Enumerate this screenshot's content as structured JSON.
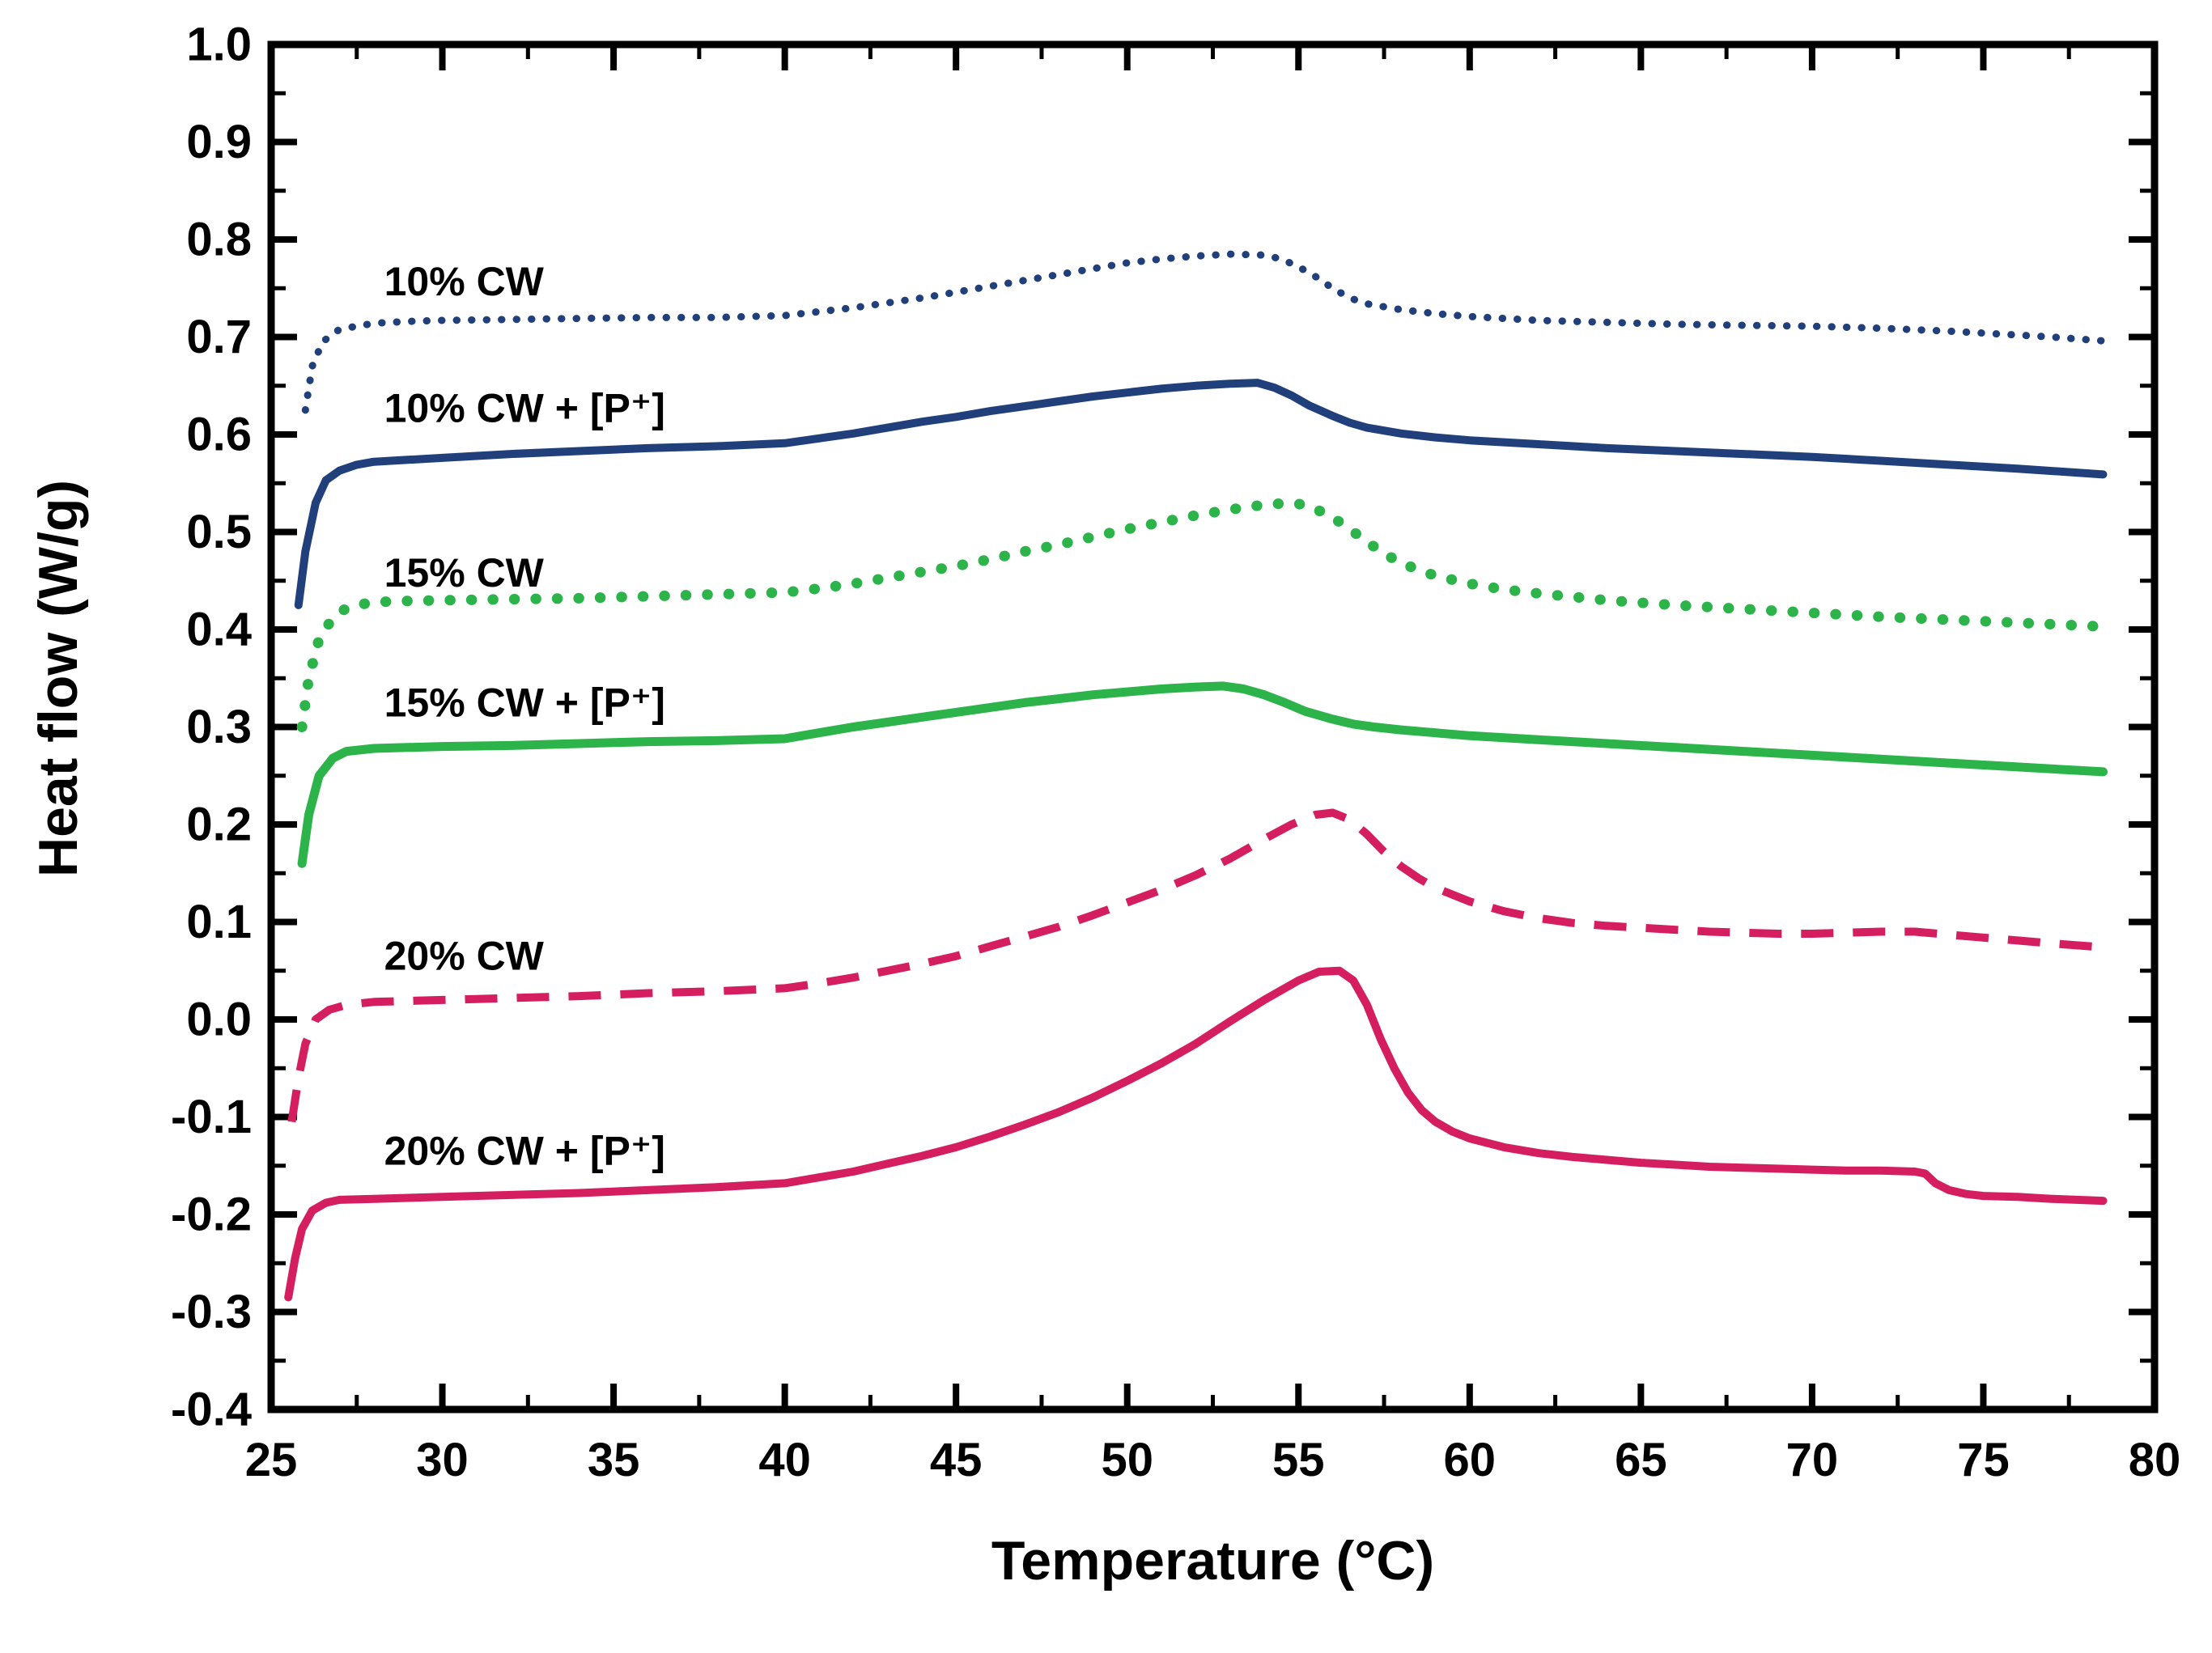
{
  "figure": {
    "background": "#ffffff"
  },
  "chart_data": {
    "type": "line",
    "title": "",
    "xlabel": "Temperature (°C)",
    "ylabel": "Heat flow (W/g)",
    "xlim": [
      25,
      80
    ],
    "ylim": [
      -0.4,
      1.0
    ],
    "x_major_tick": 5,
    "x_minor_tick": 2.5,
    "y_major_tick": 0.1,
    "y_minor_tick": 0.05,
    "grid": false,
    "axis_color": "#000000",
    "legend_position": "inline-labels",
    "series": [
      {
        "name": "10% CW",
        "label": "10% CW",
        "color": "#203f7b",
        "line_style": "dot",
        "line_width": 9,
        "label_pos": {
          "x": 28.3,
          "y": 0.757
        },
        "points": [
          [
            26,
            0.625
          ],
          [
            26.2,
            0.67
          ],
          [
            26.5,
            0.695
          ],
          [
            27,
            0.708
          ],
          [
            28,
            0.714
          ],
          [
            29,
            0.716
          ],
          [
            30,
            0.717
          ],
          [
            32,
            0.718
          ],
          [
            34,
            0.719
          ],
          [
            36,
            0.72
          ],
          [
            38,
            0.72
          ],
          [
            40,
            0.722
          ],
          [
            41,
            0.726
          ],
          [
            42,
            0.73
          ],
          [
            43,
            0.735
          ],
          [
            44,
            0.74
          ],
          [
            45,
            0.746
          ],
          [
            46,
            0.752
          ],
          [
            47,
            0.758
          ],
          [
            48,
            0.764
          ],
          [
            49,
            0.77
          ],
          [
            50,
            0.776
          ],
          [
            51,
            0.78
          ],
          [
            52,
            0.783
          ],
          [
            53,
            0.785
          ],
          [
            54,
            0.784
          ],
          [
            54.5,
            0.78
          ],
          [
            55,
            0.772
          ],
          [
            55.5,
            0.762
          ],
          [
            56,
            0.75
          ],
          [
            56.5,
            0.74
          ],
          [
            57,
            0.734
          ],
          [
            58,
            0.728
          ],
          [
            59,
            0.724
          ],
          [
            60,
            0.721
          ],
          [
            62,
            0.717
          ],
          [
            64,
            0.715
          ],
          [
            66,
            0.713
          ],
          [
            68,
            0.712
          ],
          [
            70,
            0.711
          ],
          [
            72,
            0.709
          ],
          [
            74,
            0.706
          ],
          [
            76,
            0.702
          ],
          [
            77,
            0.7
          ],
          [
            78.5,
            0.696
          ]
        ]
      },
      {
        "name": "10% CW + [P+]",
        "label": "10% CW + [P⁺]",
        "color": "#203f7b",
        "line_style": "solid",
        "line_width": 10,
        "label_pos": {
          "x": 28.3,
          "y": 0.627
        },
        "points": [
          [
            25.8,
            0.425
          ],
          [
            26,
            0.48
          ],
          [
            26.3,
            0.53
          ],
          [
            26.6,
            0.553
          ],
          [
            27,
            0.563
          ],
          [
            27.5,
            0.569
          ],
          [
            28,
            0.572
          ],
          [
            29,
            0.574
          ],
          [
            30,
            0.576
          ],
          [
            32,
            0.58
          ],
          [
            34,
            0.583
          ],
          [
            36,
            0.586
          ],
          [
            38,
            0.588
          ],
          [
            40,
            0.591
          ],
          [
            41,
            0.596
          ],
          [
            42,
            0.601
          ],
          [
            43,
            0.607
          ],
          [
            44,
            0.613
          ],
          [
            45,
            0.618
          ],
          [
            46,
            0.624
          ],
          [
            47,
            0.629
          ],
          [
            48,
            0.634
          ],
          [
            49,
            0.639
          ],
          [
            50,
            0.643
          ],
          [
            51,
            0.647
          ],
          [
            52,
            0.65
          ],
          [
            53,
            0.652
          ],
          [
            53.8,
            0.653
          ],
          [
            54.3,
            0.648
          ],
          [
            54.8,
            0.64
          ],
          [
            55.3,
            0.63
          ],
          [
            56,
            0.619
          ],
          [
            56.5,
            0.612
          ],
          [
            57,
            0.607
          ],
          [
            58,
            0.601
          ],
          [
            59,
            0.597
          ],
          [
            60,
            0.594
          ],
          [
            62,
            0.59
          ],
          [
            64,
            0.586
          ],
          [
            66,
            0.583
          ],
          [
            68,
            0.58
          ],
          [
            70,
            0.577
          ],
          [
            72,
            0.573
          ],
          [
            74,
            0.569
          ],
          [
            76,
            0.565
          ],
          [
            78.5,
            0.559
          ]
        ]
      },
      {
        "name": "15% CW",
        "label": "15% CW",
        "color": "#2cb34a",
        "line_style": "dot",
        "line_width": 13,
        "label_pos": {
          "x": 28.3,
          "y": 0.458
        },
        "points": [
          [
            25.9,
            0.3
          ],
          [
            26.1,
            0.35
          ],
          [
            26.4,
            0.39
          ],
          [
            26.8,
            0.412
          ],
          [
            27.2,
            0.422
          ],
          [
            27.8,
            0.427
          ],
          [
            28.5,
            0.429
          ],
          [
            30,
            0.43
          ],
          [
            32,
            0.431
          ],
          [
            34,
            0.432
          ],
          [
            36,
            0.434
          ],
          [
            38,
            0.436
          ],
          [
            40,
            0.438
          ],
          [
            41,
            0.442
          ],
          [
            42,
            0.447
          ],
          [
            43,
            0.453
          ],
          [
            44,
            0.459
          ],
          [
            45,
            0.465
          ],
          [
            46,
            0.472
          ],
          [
            47,
            0.48
          ],
          [
            48,
            0.487
          ],
          [
            49,
            0.495
          ],
          [
            50,
            0.503
          ],
          [
            51,
            0.51
          ],
          [
            52,
            0.517
          ],
          [
            53,
            0.523
          ],
          [
            54,
            0.528
          ],
          [
            54.8,
            0.53
          ],
          [
            55.3,
            0.527
          ],
          [
            56,
            0.515
          ],
          [
            56.5,
            0.503
          ],
          [
            57,
            0.49
          ],
          [
            57.5,
            0.478
          ],
          [
            58,
            0.468
          ],
          [
            59,
            0.455
          ],
          [
            60,
            0.447
          ],
          [
            61,
            0.441
          ],
          [
            62,
            0.437
          ],
          [
            64,
            0.43
          ],
          [
            66,
            0.425
          ],
          [
            68,
            0.421
          ],
          [
            70,
            0.417
          ],
          [
            72,
            0.413
          ],
          [
            74,
            0.41
          ],
          [
            76,
            0.407
          ],
          [
            78.5,
            0.403
          ]
        ]
      },
      {
        "name": "15% CW + [P+]",
        "label": "15% CW + [P⁺]",
        "color": "#2cb34a",
        "line_style": "solid",
        "line_width": 11,
        "label_pos": {
          "x": 28.3,
          "y": 0.325
        },
        "points": [
          [
            25.9,
            0.16
          ],
          [
            26.1,
            0.21
          ],
          [
            26.4,
            0.25
          ],
          [
            26.8,
            0.268
          ],
          [
            27.2,
            0.275
          ],
          [
            28,
            0.278
          ],
          [
            29,
            0.279
          ],
          [
            30,
            0.28
          ],
          [
            32,
            0.281
          ],
          [
            34,
            0.283
          ],
          [
            36,
            0.285
          ],
          [
            38,
            0.286
          ],
          [
            40,
            0.288
          ],
          [
            40.5,
            0.291
          ],
          [
            41,
            0.294
          ],
          [
            42,
            0.3
          ],
          [
            43,
            0.305
          ],
          [
            44,
            0.31
          ],
          [
            45,
            0.315
          ],
          [
            46,
            0.32
          ],
          [
            47,
            0.325
          ],
          [
            48,
            0.329
          ],
          [
            49,
            0.333
          ],
          [
            50,
            0.336
          ],
          [
            51,
            0.339
          ],
          [
            52,
            0.341
          ],
          [
            52.8,
            0.342
          ],
          [
            53.4,
            0.339
          ],
          [
            54,
            0.333
          ],
          [
            54.6,
            0.325
          ],
          [
            55.2,
            0.316
          ],
          [
            56,
            0.308
          ],
          [
            56.6,
            0.303
          ],
          [
            57.2,
            0.3
          ],
          [
            58,
            0.297
          ],
          [
            59,
            0.294
          ],
          [
            60,
            0.291
          ],
          [
            62,
            0.287
          ],
          [
            64,
            0.283
          ],
          [
            66,
            0.279
          ],
          [
            68,
            0.275
          ],
          [
            70,
            0.271
          ],
          [
            72,
            0.267
          ],
          [
            74,
            0.263
          ],
          [
            76,
            0.259
          ],
          [
            78.5,
            0.254
          ]
        ]
      },
      {
        "name": "20% CW",
        "label": "20% CW",
        "color": "#d41e5f",
        "line_style": "dash",
        "line_width": 10,
        "label_pos": {
          "x": 28.3,
          "y": 0.065
        },
        "points": [
          [
            25.6,
            -0.105
          ],
          [
            25.8,
            -0.06
          ],
          [
            26,
            -0.025
          ],
          [
            26.3,
            0.0
          ],
          [
            26.7,
            0.01
          ],
          [
            27.2,
            0.015
          ],
          [
            28,
            0.018
          ],
          [
            29,
            0.019
          ],
          [
            30,
            0.02
          ],
          [
            32,
            0.022
          ],
          [
            34,
            0.024
          ],
          [
            36,
            0.027
          ],
          [
            38,
            0.029
          ],
          [
            40,
            0.032
          ],
          [
            41,
            0.037
          ],
          [
            42,
            0.043
          ],
          [
            43,
            0.05
          ],
          [
            44,
            0.057
          ],
          [
            45,
            0.065
          ],
          [
            46,
            0.075
          ],
          [
            47,
            0.085
          ],
          [
            48,
            0.095
          ],
          [
            49,
            0.107
          ],
          [
            50,
            0.12
          ],
          [
            51,
            0.133
          ],
          [
            52,
            0.148
          ],
          [
            53,
            0.165
          ],
          [
            54,
            0.185
          ],
          [
            54.8,
            0.2
          ],
          [
            55.5,
            0.21
          ],
          [
            56,
            0.212
          ],
          [
            56.5,
            0.205
          ],
          [
            57,
            0.19
          ],
          [
            57.5,
            0.172
          ],
          [
            58,
            0.157
          ],
          [
            58.5,
            0.145
          ],
          [
            59,
            0.135
          ],
          [
            60,
            0.121
          ],
          [
            61,
            0.111
          ],
          [
            62,
            0.104
          ],
          [
            63,
            0.099
          ],
          [
            64,
            0.096
          ],
          [
            65,
            0.094
          ],
          [
            66,
            0.092
          ],
          [
            67,
            0.09
          ],
          [
            68,
            0.089
          ],
          [
            69,
            0.088
          ],
          [
            70,
            0.088
          ],
          [
            71,
            0.089
          ],
          [
            72,
            0.09
          ],
          [
            73,
            0.09
          ],
          [
            74,
            0.087
          ],
          [
            75,
            0.084
          ],
          [
            76,
            0.081
          ],
          [
            77,
            0.078
          ],
          [
            78.5,
            0.074
          ]
        ]
      },
      {
        "name": "20% CW + [P+]",
        "label": "20% CW  + [P⁺]",
        "color": "#d41e5f",
        "line_style": "solid",
        "line_width": 10,
        "label_pos": {
          "x": 28.3,
          "y": -0.135
        },
        "points": [
          [
            25.5,
            -0.285
          ],
          [
            25.7,
            -0.245
          ],
          [
            25.9,
            -0.215
          ],
          [
            26.2,
            -0.196
          ],
          [
            26.6,
            -0.188
          ],
          [
            27,
            -0.185
          ],
          [
            28,
            -0.184
          ],
          [
            29,
            -0.183
          ],
          [
            30,
            -0.182
          ],
          [
            32,
            -0.18
          ],
          [
            34,
            -0.178
          ],
          [
            36,
            -0.175
          ],
          [
            38,
            -0.172
          ],
          [
            40,
            -0.168
          ],
          [
            41,
            -0.162
          ],
          [
            42,
            -0.156
          ],
          [
            43,
            -0.148
          ],
          [
            44,
            -0.14
          ],
          [
            45,
            -0.131
          ],
          [
            46,
            -0.12
          ],
          [
            47,
            -0.108
          ],
          [
            48,
            -0.095
          ],
          [
            49,
            -0.08
          ],
          [
            50,
            -0.063
          ],
          [
            51,
            -0.045
          ],
          [
            52,
            -0.025
          ],
          [
            53,
            -0.002
          ],
          [
            54,
            0.02
          ],
          [
            55,
            0.04
          ],
          [
            55.6,
            0.049
          ],
          [
            56.2,
            0.05
          ],
          [
            56.6,
            0.04
          ],
          [
            57,
            0.015
          ],
          [
            57.4,
            -0.02
          ],
          [
            57.8,
            -0.05
          ],
          [
            58.2,
            -0.075
          ],
          [
            58.6,
            -0.093
          ],
          [
            59,
            -0.105
          ],
          [
            59.5,
            -0.115
          ],
          [
            60,
            -0.122
          ],
          [
            61,
            -0.131
          ],
          [
            62,
            -0.137
          ],
          [
            63,
            -0.141
          ],
          [
            64,
            -0.144
          ],
          [
            65,
            -0.147
          ],
          [
            66,
            -0.149
          ],
          [
            67,
            -0.151
          ],
          [
            68,
            -0.152
          ],
          [
            69,
            -0.153
          ],
          [
            70,
            -0.154
          ],
          [
            71,
            -0.155
          ],
          [
            72,
            -0.155
          ],
          [
            73,
            -0.156
          ],
          [
            73.3,
            -0.158
          ],
          [
            73.6,
            -0.168
          ],
          [
            74,
            -0.175
          ],
          [
            74.5,
            -0.179
          ],
          [
            75,
            -0.181
          ],
          [
            76,
            -0.182
          ],
          [
            77,
            -0.184
          ],
          [
            78.5,
            -0.186
          ]
        ]
      }
    ]
  }
}
